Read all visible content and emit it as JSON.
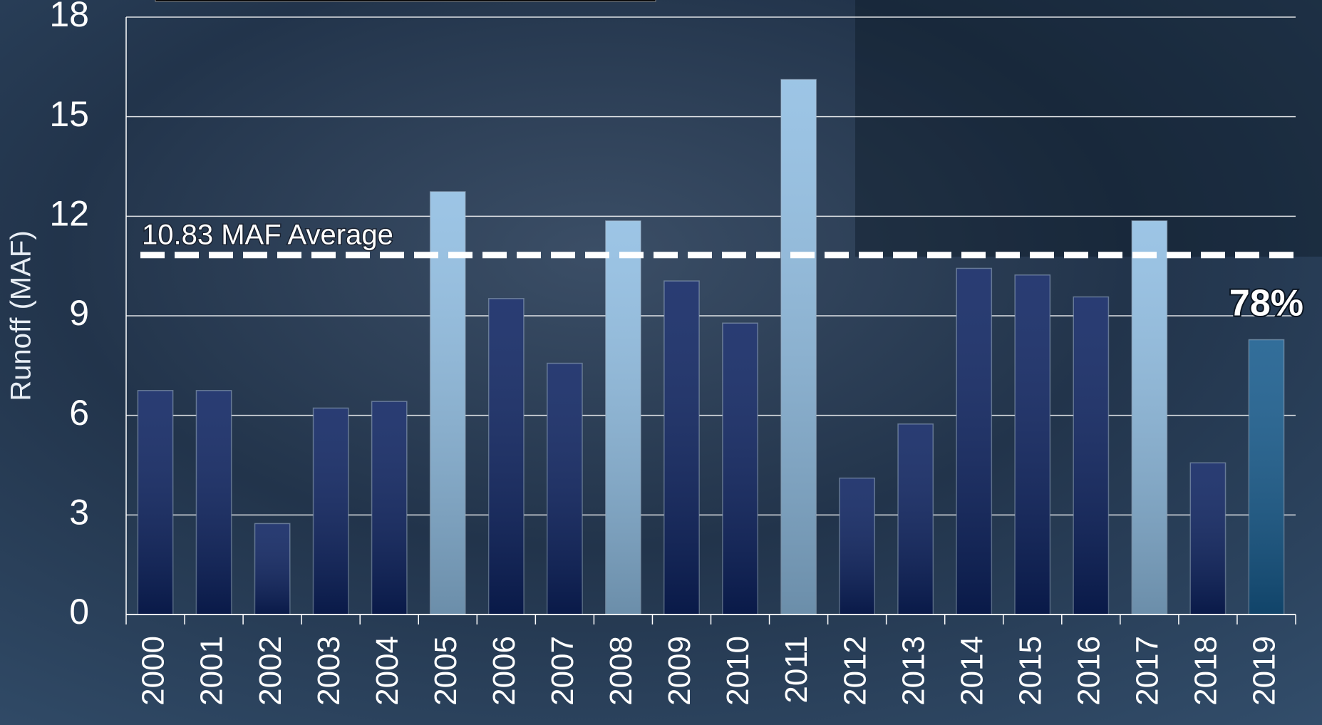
{
  "chart_data": {
    "type": "bar",
    "y_axis_label": "Runoff (MAF)",
    "categories": [
      "2000",
      "2001",
      "2002",
      "2003",
      "2004",
      "2005",
      "2006",
      "2007",
      "2008",
      "2009",
      "2010",
      "2011",
      "2012",
      "2013",
      "2014",
      "2015",
      "2016",
      "2017",
      "2018",
      "2019"
    ],
    "values": [
      6.75,
      6.75,
      2.74,
      6.22,
      6.42,
      12.74,
      9.52,
      7.57,
      11.86,
      10.05,
      8.78,
      16.12,
      4.11,
      5.74,
      10.43,
      10.23,
      9.57,
      11.86,
      4.57,
      8.28
    ],
    "colors": [
      "#0c2260",
      "#0c2260",
      "#0c2260",
      "#0c2260",
      "#0c2260",
      "#8fbde2",
      "#0c2260",
      "#0c2260",
      "#8fbde2",
      "#0c2260",
      "#0c2260",
      "#8fbde2",
      "#0c2260",
      "#0c2260",
      "#0c2260",
      "#0c2260",
      "#0c2260",
      "#8fbde2",
      "#0c2260",
      "#165a8c"
    ],
    "ylim": [
      0,
      18
    ],
    "yticks": [
      0,
      3,
      6,
      9,
      12,
      15,
      18
    ],
    "grid": true,
    "reference_line": {
      "value": 10.83,
      "label": "10.83 MAF Average",
      "color": "#ffffff"
    },
    "bar_annotation": {
      "category_index": 19,
      "text": "78%"
    }
  }
}
